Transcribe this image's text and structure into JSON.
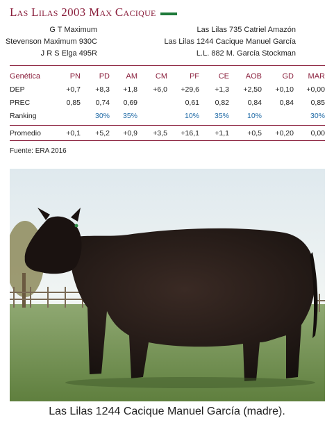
{
  "title": "Las Lilas 2003 Max Cacique",
  "pedigree_left": [
    "G T Maximum",
    "Stevenson Maximum 930C",
    "J R S Elga 495R"
  ],
  "pedigree_right": [
    "Las Lilas 735 Catriel Amazón",
    "Las Lilas 1244 Cacique Manuel García",
    "L.L. 882 M. García Stockman"
  ],
  "table": {
    "headers": [
      "Genética",
      "PN",
      "PD",
      "AM",
      "CM",
      "PF",
      "CE",
      "AOB",
      "GD",
      "MAR"
    ],
    "rows": [
      {
        "label": "DEP",
        "values": [
          "+0,7",
          "+8,3",
          "+1,8",
          "+6,0",
          "+29,6",
          "+1,3",
          "+2,50",
          "+0,10",
          "+0,00"
        ]
      },
      {
        "label": "PREC",
        "values": [
          "0,85",
          "0,74",
          "0,69",
          "",
          "0,61",
          "0,82",
          "0,84",
          "0,84",
          "0,85"
        ]
      },
      {
        "label": "Ranking",
        "values": [
          "",
          "30%",
          "35%",
          "",
          "10%",
          "35%",
          "10%",
          "",
          "30%"
        ]
      }
    ],
    "promedio": {
      "label": "Promedio",
      "values": [
        "+0,1",
        "+5,2",
        "+0,9",
        "+3,5",
        "+16,1",
        "+1,1",
        "+0,5",
        "+0,20",
        "0,00"
      ]
    }
  },
  "source": "Fuente: ERA 2016",
  "caption": "Las Lilas 1244 Cacique Manuel García (madre).",
  "colors": {
    "accent": "#8a1f3c",
    "rank": "#1f6aa6",
    "bar": "#1e7a3a"
  }
}
